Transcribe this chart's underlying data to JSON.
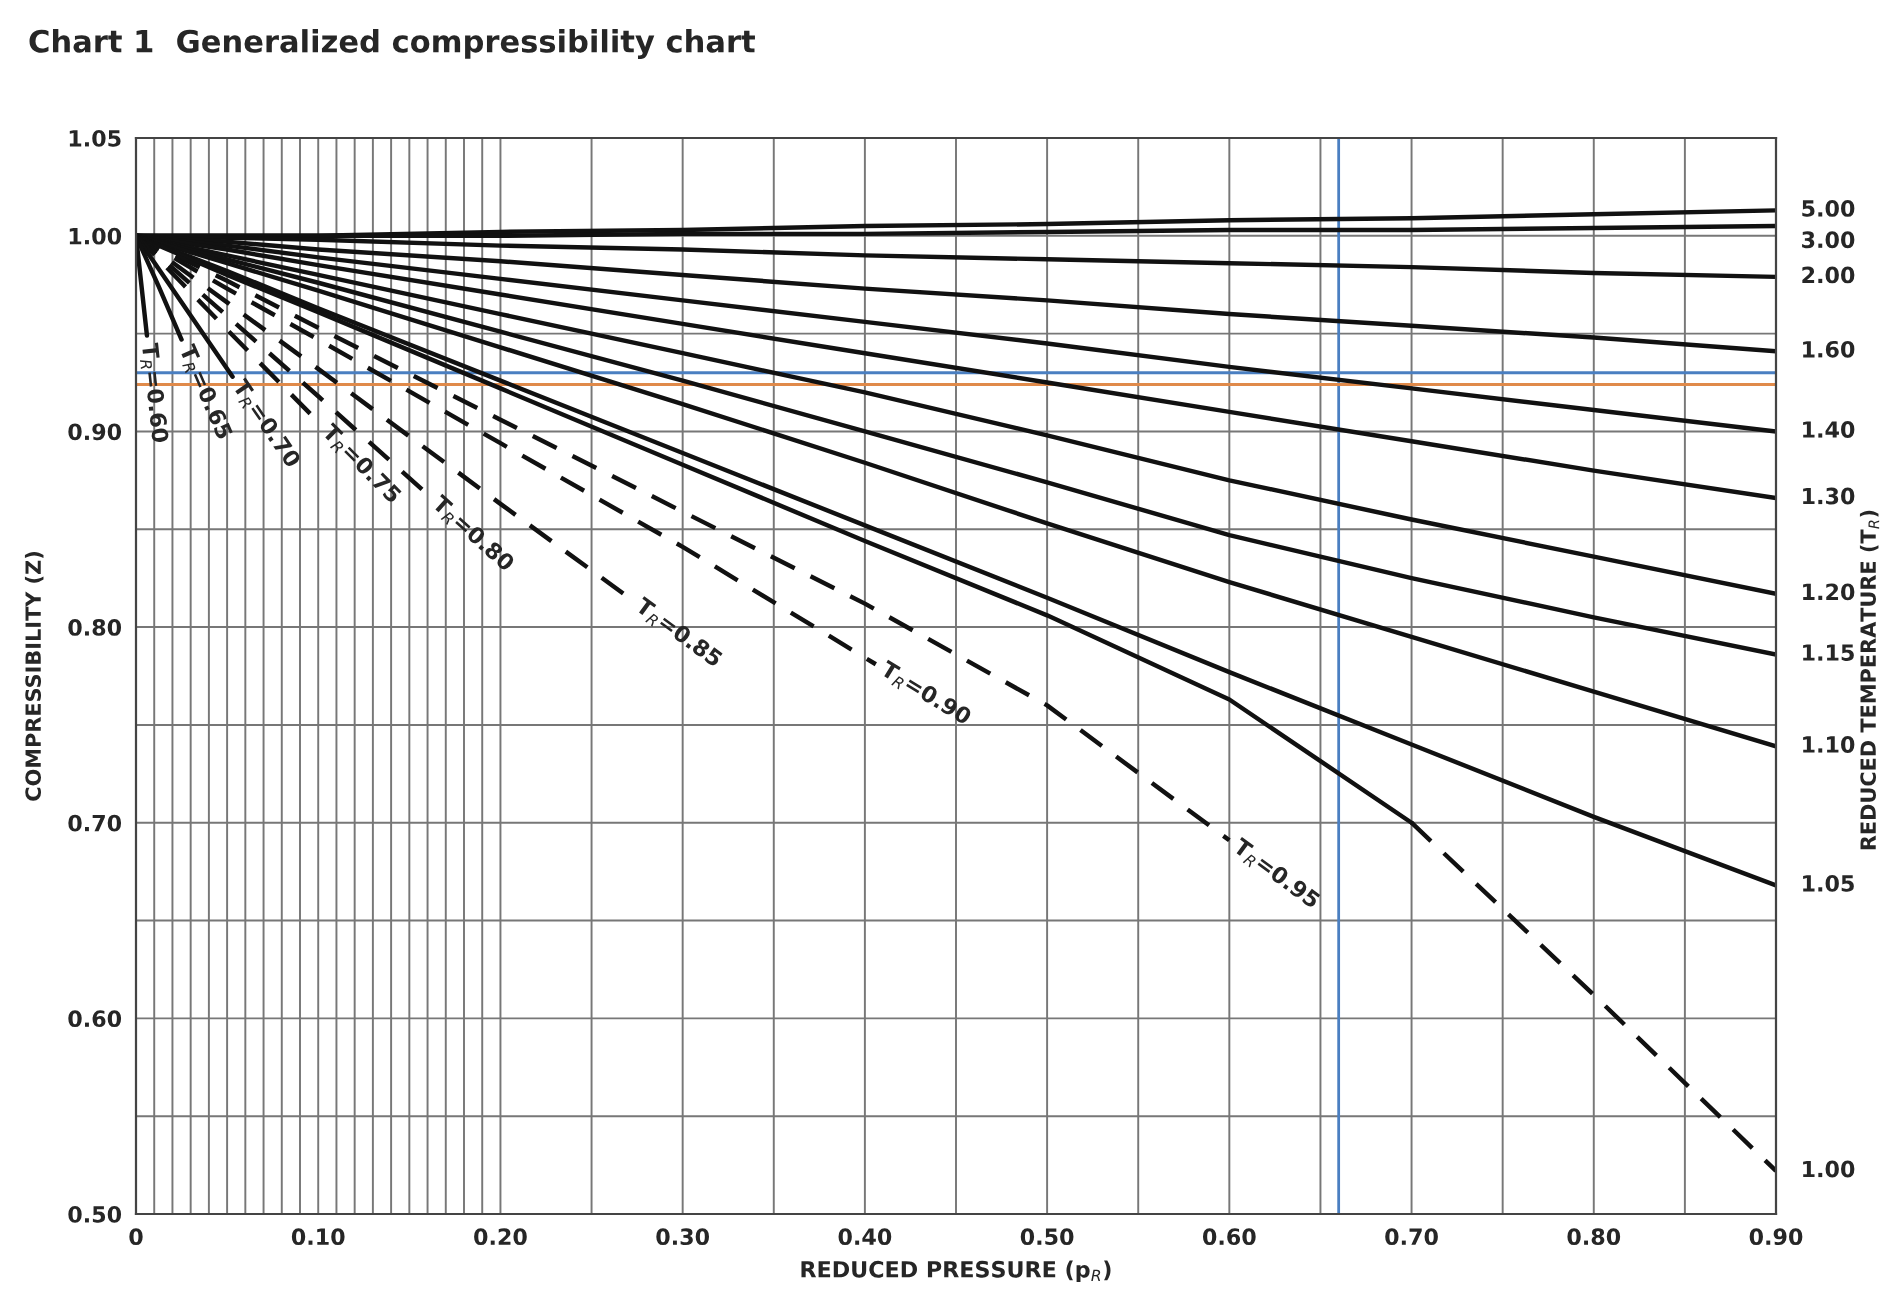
{
  "chart_data": {
    "type": "line",
    "title": "Chart 1  Generalized compressibility chart",
    "xlabel": "REDUCED PRESSURE (p$_{R}$)",
    "ylabel": "COMPRESSIBILITY (Z)",
    "y2label": "REDUCED TEMPERATURE (T$_{R}$)",
    "xlim": [
      0,
      0.9
    ],
    "ylim": [
      0.5,
      1.05
    ],
    "xticks": [
      {
        "value": 0,
        "label": "0"
      },
      {
        "value": 0.01,
        "label": null
      },
      {
        "value": 0.02,
        "label": null
      },
      {
        "value": 0.03,
        "label": null
      },
      {
        "value": 0.04,
        "label": null
      },
      {
        "value": 0.05,
        "label": null
      },
      {
        "value": 0.06,
        "label": null
      },
      {
        "value": 0.07,
        "label": null
      },
      {
        "value": 0.08,
        "label": null
      },
      {
        "value": 0.09,
        "label": null
      },
      {
        "value": 0.1,
        "label": "0.10"
      },
      {
        "value": 0.11,
        "label": null
      },
      {
        "value": 0.12,
        "label": null
      },
      {
        "value": 0.13,
        "label": null
      },
      {
        "value": 0.14,
        "label": null
      },
      {
        "value": 0.15,
        "label": null
      },
      {
        "value": 0.16,
        "label": null
      },
      {
        "value": 0.17,
        "label": null
      },
      {
        "value": 0.18,
        "label": null
      },
      {
        "value": 0.19,
        "label": null
      },
      {
        "value": 0.2,
        "label": "0.20"
      },
      {
        "value": 0.25,
        "label": null
      },
      {
        "value": 0.3,
        "label": "0.30"
      },
      {
        "value": 0.35,
        "label": null
      },
      {
        "value": 0.4,
        "label": "0.40"
      },
      {
        "value": 0.45,
        "label": null
      },
      {
        "value": 0.5,
        "label": "0.50"
      },
      {
        "value": 0.55,
        "label": null
      },
      {
        "value": 0.6,
        "label": "0.60"
      },
      {
        "value": 0.65,
        "label": null
      },
      {
        "value": 0.7,
        "label": "0.70"
      },
      {
        "value": 0.75,
        "label": null
      },
      {
        "value": 0.8,
        "label": "0.80"
      },
      {
        "value": 0.85,
        "label": null
      },
      {
        "value": 0.9,
        "label": "0.90"
      }
    ],
    "yticks": [
      {
        "value": 0.5,
        "label": "0.50"
      },
      {
        "value": 0.55,
        "label": null
      },
      {
        "value": 0.6,
        "label": "0.60"
      },
      {
        "value": 0.65,
        "label": null
      },
      {
        "value": 0.7,
        "label": "0.70"
      },
      {
        "value": 0.75,
        "label": null
      },
      {
        "value": 0.8,
        "label": "0.80"
      },
      {
        "value": 0.85,
        "label": null
      },
      {
        "value": 0.9,
        "label": "0.90"
      },
      {
        "value": 0.95,
        "label": null
      },
      {
        "value": 1.0,
        "label": "1.00"
      },
      {
        "value": 1.05,
        "label": "1.05"
      }
    ],
    "grid": true,
    "legend": false,
    "marker": "none",
    "ref_lines": [
      {
        "axis": "y",
        "value": 0.93,
        "color": "#4a7fc1"
      },
      {
        "axis": "x",
        "value": 0.66,
        "color": "#4a7fc1"
      },
      {
        "axis": "y",
        "value": 0.924,
        "color": "#e08a4a"
      }
    ],
    "series": [
      {
        "name": "5.00",
        "color": "#111111",
        "line_style": "solid",
        "x": [
          0,
          0.05,
          0.1,
          0.2,
          0.3,
          0.4,
          0.5,
          0.6,
          0.7,
          0.8,
          0.9
        ],
        "values": [
          1,
          1.0,
          1.0,
          1.002,
          1.003,
          1.005,
          1.006,
          1.008,
          1.009,
          1.011,
          1.013
        ]
      },
      {
        "name": "3.00",
        "color": "#111111",
        "line_style": "solid",
        "x": [
          0,
          0.05,
          0.1,
          0.2,
          0.3,
          0.4,
          0.5,
          0.6,
          0.7,
          0.8,
          0.9
        ],
        "values": [
          1,
          1.0,
          1.0,
          1.0,
          1.001,
          1.001,
          1.002,
          1.003,
          1.003,
          1.004,
          1.005
        ]
      },
      {
        "name": "2.00",
        "color": "#111111",
        "line_style": "solid",
        "x": [
          0,
          0.05,
          0.1,
          0.2,
          0.3,
          0.4,
          0.5,
          0.6,
          0.7,
          0.8,
          0.9
        ],
        "values": [
          1,
          0.999,
          0.998,
          0.995,
          0.993,
          0.99,
          0.988,
          0.986,
          0.984,
          0.981,
          0.979
        ]
      },
      {
        "name": "1.60",
        "color": "#111111",
        "line_style": "solid",
        "x": [
          0,
          0.05,
          0.1,
          0.2,
          0.3,
          0.4,
          0.5,
          0.6,
          0.7,
          0.8,
          0.9
        ],
        "values": [
          1,
          0.997,
          0.993,
          0.987,
          0.98,
          0.973,
          0.967,
          0.96,
          0.954,
          0.948,
          0.941
        ]
      },
      {
        "name": "1.40",
        "color": "#111111",
        "line_style": "solid",
        "x": [
          0,
          0.05,
          0.1,
          0.2,
          0.3,
          0.4,
          0.5,
          0.6,
          0.7,
          0.8,
          0.9
        ],
        "values": [
          1,
          0.995,
          0.989,
          0.978,
          0.967,
          0.956,
          0.945,
          0.933,
          0.922,
          0.911,
          0.9
        ]
      },
      {
        "name": "1.30",
        "color": "#111111",
        "line_style": "solid",
        "x": [
          0,
          0.05,
          0.1,
          0.2,
          0.3,
          0.4,
          0.5,
          0.6,
          0.7,
          0.8,
          0.9
        ],
        "values": [
          1,
          0.993,
          0.985,
          0.97,
          0.955,
          0.94,
          0.925,
          0.91,
          0.895,
          0.88,
          0.866
        ]
      },
      {
        "name": "1.20",
        "color": "#111111",
        "line_style": "solid",
        "x": [
          0,
          0.05,
          0.1,
          0.2,
          0.3,
          0.4,
          0.5,
          0.6,
          0.7,
          0.8,
          0.9
        ],
        "values": [
          1,
          0.99,
          0.98,
          0.96,
          0.94,
          0.92,
          0.898,
          0.875,
          0.855,
          0.836,
          0.817
        ]
      },
      {
        "name": "1.15",
        "color": "#111111",
        "line_style": "solid",
        "x": [
          0,
          0.05,
          0.1,
          0.2,
          0.3,
          0.4,
          0.5,
          0.6,
          0.7,
          0.8,
          0.9
        ],
        "values": [
          1,
          0.988,
          0.976,
          0.951,
          0.926,
          0.9,
          0.874,
          0.847,
          0.825,
          0.805,
          0.786
        ]
      },
      {
        "name": "1.10",
        "color": "#111111",
        "line_style": "solid",
        "x": [
          0,
          0.05,
          0.1,
          0.2,
          0.3,
          0.4,
          0.5,
          0.6,
          0.7,
          0.8,
          0.9
        ],
        "values": [
          1,
          0.986,
          0.972,
          0.943,
          0.914,
          0.884,
          0.853,
          0.823,
          0.795,
          0.767,
          0.739
        ]
      },
      {
        "name": "1.05",
        "color": "#111111",
        "line_style": "solid",
        "x": [
          0,
          0.05,
          0.1,
          0.2,
          0.3,
          0.4,
          0.5,
          0.6,
          0.7,
          0.8,
          0.9
        ],
        "values": [
          1,
          0.982,
          0.963,
          0.926,
          0.889,
          0.852,
          0.815,
          0.777,
          0.74,
          0.703,
          0.668
        ]
      },
      {
        "color": "#111111",
        "line_style": "solid",
        "x": [
          0,
          0.05,
          0.1,
          0.2,
          0.3,
          0.4,
          0.5,
          0.6,
          0.7
        ],
        "values": [
          1,
          0.98,
          0.961,
          0.922,
          0.883,
          0.844,
          0.806,
          0.763,
          0.7
        ]
      },
      {
        "name": "1.00",
        "color": "#111111",
        "line_style": "dashed",
        "x": [
          0.7,
          0.8,
          0.9
        ],
        "values": [
          0.7,
          0.612,
          0.522
        ]
      },
      {
        "name": "T$_{R}$=0.95",
        "color": "#111111",
        "line_style": "dashed",
        "x": [
          0,
          0.05,
          0.1,
          0.2,
          0.3,
          0.4,
          0.5,
          0.6
        ],
        "values": [
          1,
          0.977,
          0.953,
          0.906,
          0.859,
          0.812,
          0.76,
          0.691
        ]
      },
      {
        "name": "T$_{R}$=0.90",
        "color": "#111111",
        "line_style": "dashed",
        "x": [
          0,
          0.05,
          0.1,
          0.2,
          0.3,
          0.406
        ],
        "values": [
          1,
          0.973,
          0.947,
          0.894,
          0.841,
          0.781
        ]
      },
      {
        "name": "T$_{R}$=0.85",
        "color": "#111111",
        "line_style": "dashed",
        "x": [
          0,
          0.05,
          0.1,
          0.2,
          0.272
        ],
        "values": [
          1,
          0.966,
          0.932,
          0.863,
          0.814
        ]
      },
      {
        "name": "T$_{R}$=0.80",
        "color": "#111111",
        "line_style": "dashed",
        "x": [
          0,
          0.05,
          0.1,
          0.161
        ],
        "values": [
          1,
          0.959,
          0.918,
          0.867
        ]
      },
      {
        "name": "T$_{R}$=0.75",
        "color": "#111111",
        "line_style": "dashed",
        "x": [
          0,
          0.025,
          0.05,
          0.101
        ],
        "values": [
          1,
          0.976,
          0.952,
          0.904
        ]
      },
      {
        "name": "T$_{R}$=0.70",
        "color": "#111111",
        "line_style": "solid",
        "x": [
          0,
          0.025,
          0.053
        ],
        "values": [
          1,
          0.966,
          0.928
        ]
      },
      {
        "name": "T$_{R}$=0.65",
        "color": "#111111",
        "line_style": "solid",
        "x": [
          0,
          0.0125,
          0.025
        ],
        "values": [
          1,
          0.974,
          0.947
        ]
      },
      {
        "name": "T$_{R}$=0.60",
        "color": "#111111",
        "line_style": "solid",
        "x": [
          0,
          0.006
        ],
        "values": [
          1,
          0.949
        ]
      }
    ]
  }
}
